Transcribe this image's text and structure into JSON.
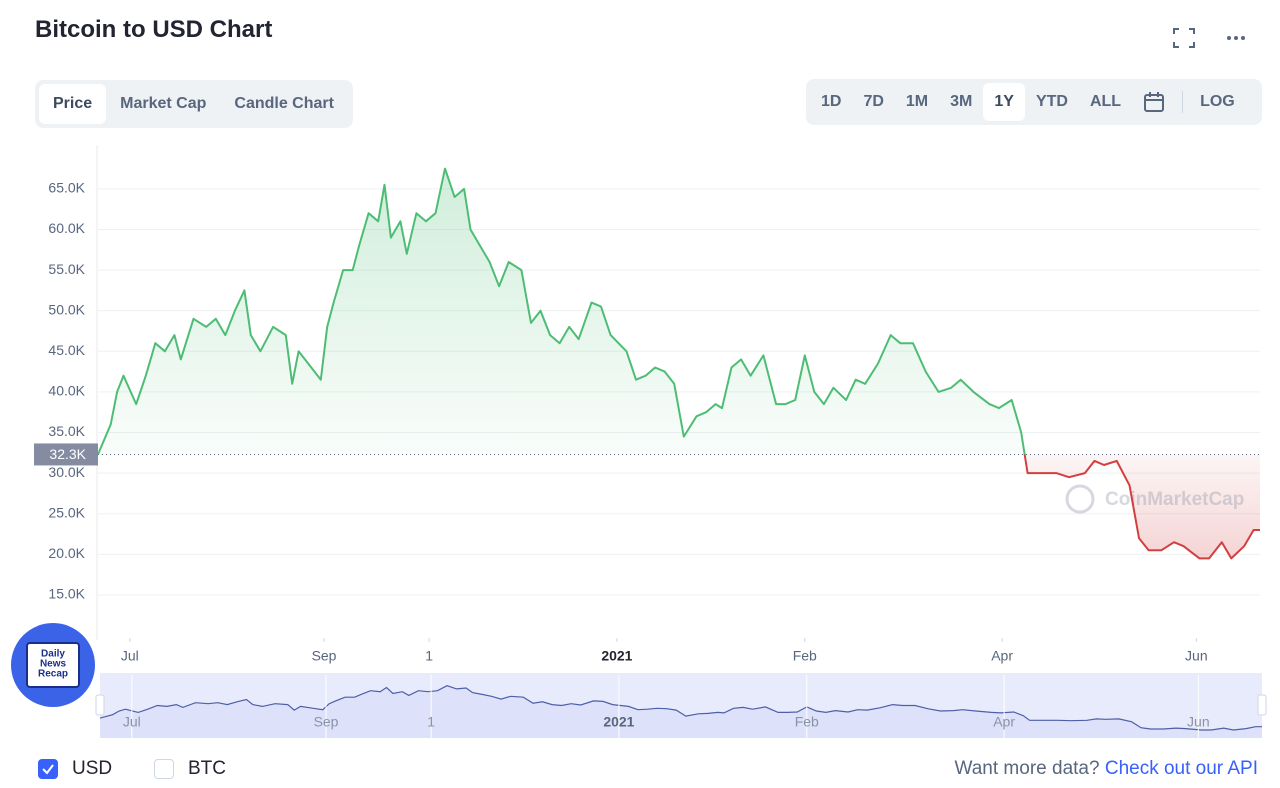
{
  "header": {
    "title": "Bitcoin to USD Chart"
  },
  "tabs": {
    "items": [
      "Price",
      "Market Cap",
      "Candle Chart"
    ],
    "active": 0
  },
  "ranges": {
    "items": [
      "1D",
      "7D",
      "1M",
      "3M",
      "1Y",
      "YTD",
      "ALL"
    ],
    "active": 4,
    "log": "LOG"
  },
  "chart_data": {
    "type": "line",
    "x": [
      0,
      4,
      6,
      8,
      12,
      15,
      18,
      21,
      24,
      26,
      30,
      34,
      37,
      40,
      43,
      46,
      48,
      51,
      55,
      59,
      61,
      63,
      67,
      70,
      72,
      74,
      77,
      80,
      82,
      85,
      88,
      90,
      92,
      95,
      97,
      100,
      103,
      106,
      109,
      112,
      115,
      117,
      120,
      123,
      126,
      129,
      133,
      136,
      139,
      142,
      145,
      148,
      151,
      155,
      158,
      161,
      166,
      169,
      172,
      175,
      178,
      181,
      184,
      188,
      191,
      194,
      196,
      199,
      202,
      205,
      209,
      213,
      216,
      219,
      222,
      225,
      228,
      231,
      235,
      238,
      241,
      245,
      249,
      252,
      256,
      260,
      264,
      268,
      271,
      275,
      280,
      283,
      287,
      290,
      292,
      296,
      301,
      305,
      310,
      313,
      316,
      320,
      324,
      327,
      330,
      334,
      338,
      341,
      346,
      349,
      353,
      356,
      360,
      363,
      365
    ],
    "values": [
      32300,
      36000,
      40000,
      42000,
      38500,
      42000,
      46000,
      45000,
      47000,
      44000,
      49000,
      48000,
      49000,
      47000,
      50000,
      52500,
      47000,
      45000,
      48000,
      47000,
      41000,
      45000,
      43000,
      41500,
      48000,
      51000,
      55000,
      55000,
      58000,
      62000,
      61000,
      65500,
      59000,
      61000,
      57000,
      62000,
      61000,
      62000,
      67500,
      64000,
      65000,
      60000,
      58000,
      56000,
      53000,
      56000,
      55000,
      48500,
      50000,
      47000,
      46000,
      48000,
      46500,
      51000,
      50500,
      47000,
      45000,
      41500,
      42000,
      43000,
      42500,
      41000,
      34500,
      37000,
      37500,
      38500,
      38000,
      43000,
      44000,
      42000,
      44500,
      38500,
      38500,
      39000,
      44500,
      40000,
      38500,
      40500,
      39000,
      41500,
      41000,
      43500,
      47000,
      46000,
      46000,
      42500,
      40000,
      40500,
      41500,
      40000,
      38500,
      38000,
      39000,
      35000,
      30000,
      30000,
      30000,
      29500,
      30000,
      31500,
      31000,
      31500,
      28500,
      22000,
      20500,
      20500,
      21500,
      21000,
      19500,
      19500,
      21500,
      19500,
      21000,
      23000,
      23000
    ],
    "xlim": [
      0,
      365
    ],
    "xticks": [
      {
        "value": 10,
        "label": "Jul"
      },
      {
        "value": 71,
        "label": "Sep"
      },
      {
        "value": 104,
        "label": "1"
      },
      {
        "value": 163,
        "label": "2021"
      },
      {
        "value": 222,
        "label": "Feb"
      },
      {
        "value": 284,
        "label": "Apr"
      },
      {
        "value": 345,
        "label": "Jun"
      }
    ],
    "ylim": [
      9700,
      70400
    ],
    "yticks": [
      {
        "value": 15000,
        "label": "15.0K"
      },
      {
        "value": 20000,
        "label": "20.0K"
      },
      {
        "value": 25000,
        "label": "25.0K"
      },
      {
        "value": 30000,
        "label": "30.0K"
      },
      {
        "value": 35000,
        "label": "35.0K"
      },
      {
        "value": 40000,
        "label": "40.0K"
      },
      {
        "value": 45000,
        "label": "45.0K"
      },
      {
        "value": 50000,
        "label": "50.0K"
      },
      {
        "value": 55000,
        "label": "55.0K"
      },
      {
        "value": 60000,
        "label": "60.0K"
      },
      {
        "value": 65000,
        "label": "65.0K"
      }
    ],
    "baseline": {
      "value": 32300,
      "label": "32.3K"
    },
    "color_up": "#4dbd74",
    "color_down": "#d33f3f",
    "navigator_color": "#4d5fa8",
    "grid": true,
    "watermark": "CoinMarketCap"
  },
  "currencies": [
    {
      "label": "USD",
      "checked": true
    },
    {
      "label": "BTC",
      "checked": false
    }
  ],
  "api_note": {
    "text": "Want more data?",
    "link": "Check out our API"
  },
  "badge": {
    "lines": [
      "Daily",
      "News",
      "Recap"
    ]
  }
}
